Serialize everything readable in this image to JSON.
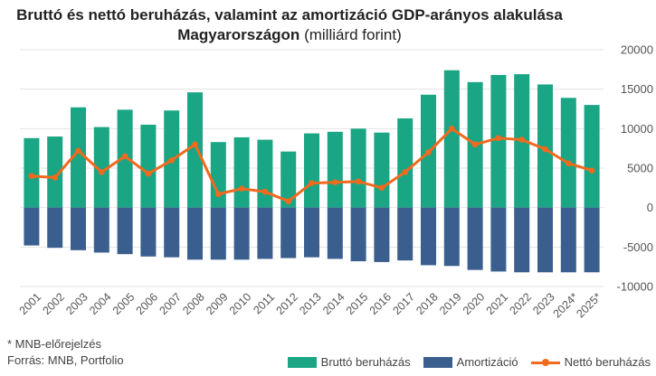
{
  "chart_data": {
    "type": "bar",
    "title_bold": "Bruttó és nettó beruházás, valamint az amortizáció GDP-arányos alakulása Magyarországon",
    "title_unit": "(milliárd forint)",
    "categories": [
      "2001",
      "2002",
      "2003",
      "2004",
      "2005",
      "2006",
      "2007",
      "2008",
      "2009",
      "2010",
      "2011",
      "2012",
      "2013",
      "2014",
      "2015",
      "2016",
      "2017",
      "2018",
      "2019",
      "2020",
      "2021",
      "2022",
      "2023",
      "2024*",
      "2025*"
    ],
    "y_ticks": [
      "20000",
      "15000",
      "10000",
      "5000",
      "0",
      "-5000",
      "-10000"
    ],
    "ylim": [
      -10000,
      20000
    ],
    "y_axis_side": "right",
    "grid": true,
    "legend_placement": "bottom-right",
    "series": [
      {
        "name": "Bruttó beruházás",
        "type": "bar",
        "color": "#1aa585",
        "values": [
          8800,
          9000,
          12700,
          10200,
          12400,
          10500,
          12300,
          14600,
          8300,
          8900,
          8600,
          7100,
          9400,
          9600,
          10000,
          9500,
          11300,
          14300,
          17400,
          15900,
          16800,
          16900,
          15600,
          13900,
          13000
        ]
      },
      {
        "name": "Amortizáció",
        "type": "bar",
        "color": "#3a5f8f",
        "values": [
          -4800,
          -5100,
          -5400,
          -5700,
          -5900,
          -6200,
          -6300,
          -6600,
          -6600,
          -6600,
          -6500,
          -6400,
          -6300,
          -6500,
          -6800,
          -6900,
          -6700,
          -7300,
          -7400,
          -7900,
          -8100,
          -8200,
          -8200,
          -8200,
          -8200
        ]
      },
      {
        "name": "Nettó beruházás",
        "type": "line",
        "color": "#f06a1e",
        "values": [
          4000,
          3800,
          7200,
          4500,
          6500,
          4300,
          6000,
          8000,
          1700,
          2400,
          2000,
          800,
          3100,
          3200,
          3300,
          2500,
          4500,
          7000,
          10000,
          8000,
          8800,
          8600,
          7400,
          5600,
          4700
        ]
      }
    ]
  },
  "notes": {
    "forecast": "* MNB-előrejelzés",
    "source": "Forrás: MNB, Portfolio"
  }
}
